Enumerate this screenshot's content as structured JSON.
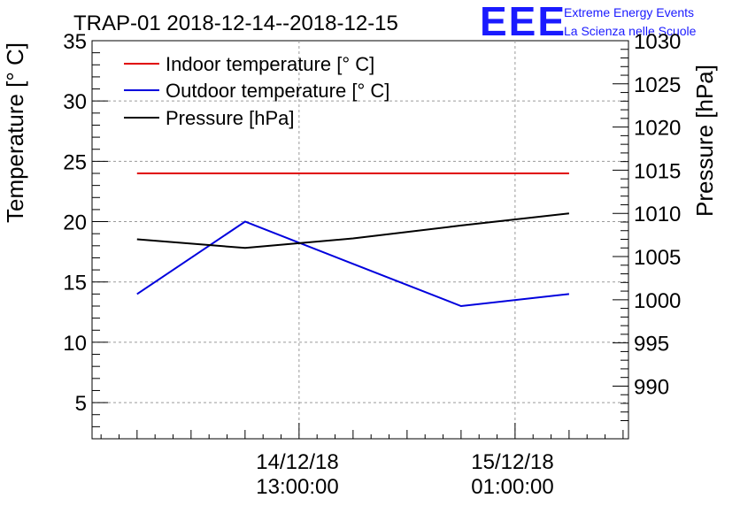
{
  "chart_data": {
    "type": "line",
    "title": "TRAP-01 2018-12-14--2018-12-15",
    "logo": {
      "text": "EEE",
      "line1": "Extreme Energy Events",
      "line2": "La Scienza nelle Scuole",
      "color": "#1a1aff"
    },
    "ylabel_left": "Temperature [° C]",
    "ylabel_right": "Pressure [hPa]",
    "ylim_left": [
      2,
      35
    ],
    "ylim_right": [
      983.9,
      1030
    ],
    "yticks_left": [
      5,
      10,
      15,
      20,
      25,
      30,
      35
    ],
    "yticks_right": [
      990,
      995,
      1000,
      1005,
      1010,
      1015,
      1020,
      1025,
      1030
    ],
    "x_hours": [
      0,
      6,
      12,
      18,
      24
    ],
    "xlim_hours": [
      -2.5,
      27.3
    ],
    "xticks": [
      {
        "hour": 9,
        "date": "14/12/18",
        "time": "13:00:00"
      },
      {
        "hour": 21,
        "date": "15/12/18",
        "time": "01:00:00"
      }
    ],
    "series": [
      {
        "name": "Indoor temperature [° C]",
        "axis": "left",
        "color": "#e00000",
        "values": [
          24,
          24,
          24,
          24,
          24
        ]
      },
      {
        "name": "Outdoor temperature [° C]",
        "axis": "left",
        "color": "#0000dd",
        "values": [
          14,
          20,
          16.5,
          13,
          14
        ]
      },
      {
        "name": "Pressure [hPa]",
        "axis": "right",
        "color": "#000000",
        "values": [
          1007,
          1006,
          1007.1,
          1008.6,
          1010
        ]
      }
    ],
    "grid": true,
    "legend_position": "top-left"
  }
}
